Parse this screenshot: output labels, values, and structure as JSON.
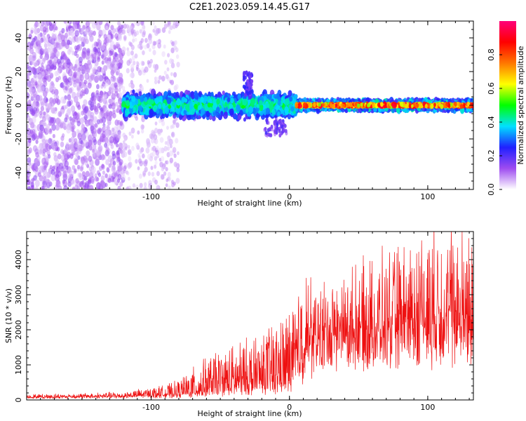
{
  "title": "C2E1.2023.059.14.45.G17",
  "chart_data": [
    {
      "type": "heatmap",
      "xlabel": "Height of straight line (km)",
      "ylabel": "Frequency (Hz)",
      "xlim": [
        -190,
        133
      ],
      "ylim": [
        -50,
        50
      ],
      "xticks": [
        -100,
        0,
        100
      ],
      "yticks": [
        -40,
        -20,
        0,
        20,
        40
      ],
      "colorbar": {
        "label": "Normalized spectral amplitude",
        "range": [
          0,
          1
        ],
        "ticks": [
          "0.0",
          "0.2",
          "0.4",
          "0.6",
          "0.8"
        ],
        "colors": [
          "#ffffff",
          "#9e4cf0",
          "#2020ff",
          "#00e0ff",
          "#00ff00",
          "#ffff00",
          "#ff7700",
          "#ff0000",
          "#ff007a"
        ]
      },
      "regions": [
        {
          "x": [
            -190,
            -120
          ],
          "freq": [
            -50,
            50
          ],
          "amplitude": 0.1
        },
        {
          "x": [
            -120,
            -80
          ],
          "freq": [
            -50,
            50
          ],
          "amplitude": 0.05
        },
        {
          "x": [
            -120,
            5
          ],
          "freq": [
            -6,
            6
          ],
          "amplitude": 0.3
        },
        {
          "x": [
            5,
            133
          ],
          "freq": [
            -2,
            2
          ],
          "amplitude": 0.9
        }
      ]
    },
    {
      "type": "line",
      "xlabel": "Height of straight line (km)",
      "ylabel": "SNR (10 * v/v)",
      "xlim": [
        -190,
        133
      ],
      "ylim": [
        0,
        4800
      ],
      "xticks": [
        -100,
        0,
        100
      ],
      "yticks": [
        0,
        1000,
        2000,
        3000,
        4000
      ],
      "color": "#ee1111",
      "envelope_x": [
        -190,
        -150,
        -120,
        -100,
        -90,
        -80,
        -70,
        -60,
        -40,
        -20,
        -10,
        0,
        5,
        10,
        15,
        20,
        30,
        40,
        50,
        60,
        70,
        80,
        90,
        100,
        110,
        120,
        130
      ],
      "envelope_peak": [
        150,
        180,
        220,
        350,
        400,
        550,
        900,
        1200,
        1600,
        1900,
        2200,
        2600,
        2800,
        3700,
        3300,
        3000,
        3100,
        3200,
        3400,
        3600,
        3800,
        4000,
        4300,
        4800,
        4700,
        4600,
        4500
      ],
      "envelope_base": [
        60,
        70,
        80,
        90,
        100,
        100,
        120,
        150,
        200,
        250,
        300,
        400,
        600,
        900,
        1100,
        1300,
        1400,
        1500,
        1500,
        1500,
        1500,
        1600,
        1600,
        1600,
        1700,
        1700,
        1700
      ]
    }
  ]
}
